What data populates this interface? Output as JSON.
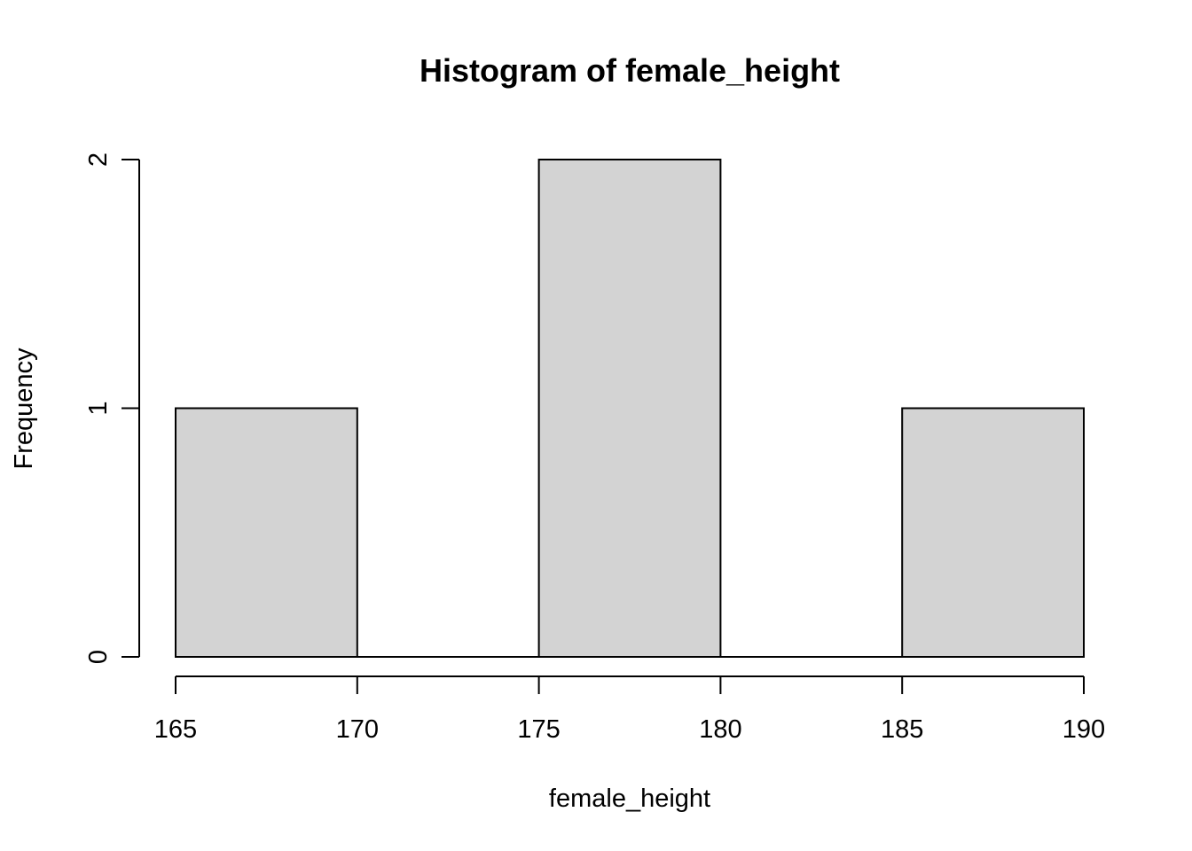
{
  "chart_data": {
    "type": "bar",
    "title": "Histogram of female_height",
    "xlabel": "female_height",
    "ylabel": "Frequency",
    "bins": [
      {
        "start": 165,
        "end": 170,
        "count": 1
      },
      {
        "start": 170,
        "end": 175,
        "count": 0
      },
      {
        "start": 175,
        "end": 180,
        "count": 2
      },
      {
        "start": 180,
        "end": 185,
        "count": 0
      },
      {
        "start": 185,
        "end": 190,
        "count": 1
      }
    ],
    "xlim": [
      165,
      190
    ],
    "ylim": [
      0,
      2
    ],
    "x_ticks": [
      "165",
      "170",
      "175",
      "180",
      "185",
      "190"
    ],
    "y_ticks": [
      "0",
      "1",
      "2"
    ],
    "grid": false,
    "legend": "none",
    "bar_fill": "#d3d3d3",
    "bar_stroke": "#000000"
  }
}
